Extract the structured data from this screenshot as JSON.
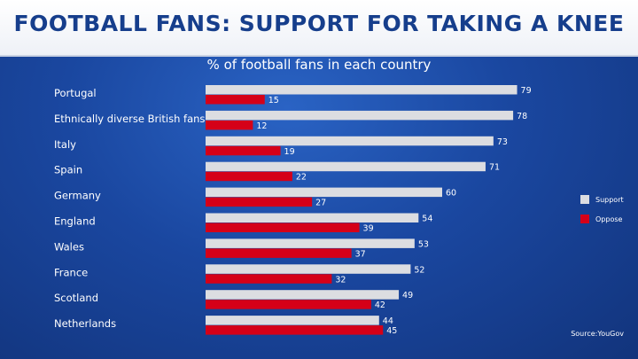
{
  "title": "FOOTBALL FANS: SUPPORT FOR TAKING A KNEE",
  "subtitle": "% of football fans in each country",
  "source": "Source:YouGov",
  "colors": {
    "support": "#dcdde1",
    "oppose": "#d50018",
    "title_text": "#163e8c"
  },
  "chart_data": {
    "type": "bar",
    "orientation": "horizontal",
    "categories": [
      "Portugal",
      "Ethnically diverse British fans",
      "Italy",
      "Spain",
      "Germany",
      "England",
      "Wales",
      "France",
      "Scotland",
      "Netherlands"
    ],
    "series": [
      {
        "name": "Support",
        "values": [
          79,
          78,
          73,
          71,
          60,
          54,
          53,
          52,
          49,
          44
        ]
      },
      {
        "name": "Oppose",
        "values": [
          15,
          12,
          19,
          22,
          27,
          39,
          37,
          32,
          42,
          45
        ]
      }
    ],
    "title": "FOOTBALL FANS: SUPPORT FOR TAKING A KNEE",
    "subtitle": "% of football fans in each country",
    "xlim": [
      0,
      100
    ],
    "grid": false,
    "legend_position": "right"
  }
}
